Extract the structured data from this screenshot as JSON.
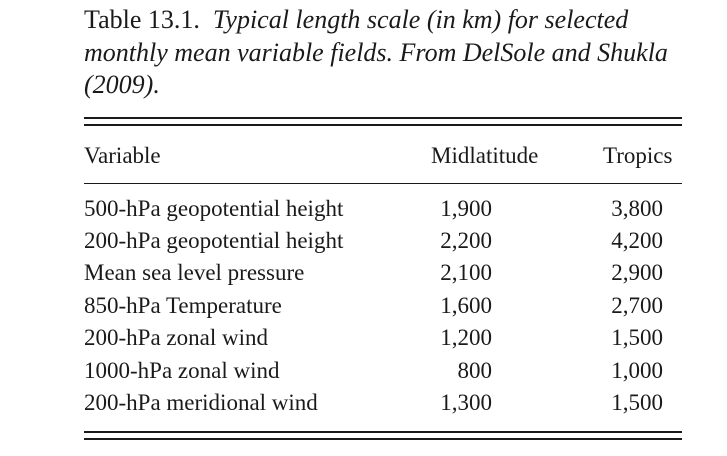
{
  "caption": {
    "label": "Table 13.1.",
    "text": "Typical length scale (in km) for selected monthly mean variable fields. From DelSole and Shukla (2009)."
  },
  "table": {
    "headers": [
      "Variable",
      "Midlatitude",
      "Tropics"
    ],
    "rows": [
      {
        "variable": "500-hPa geopotential height",
        "midlatitude": "1,900",
        "tropics": "3,800"
      },
      {
        "variable": "200-hPa geopotential height",
        "midlatitude": "2,200",
        "tropics": "4,200"
      },
      {
        "variable": "Mean sea level pressure",
        "midlatitude": "2,100",
        "tropics": "2,900"
      },
      {
        "variable": "850-hPa Temperature",
        "midlatitude": "1,600",
        "tropics": "2,700"
      },
      {
        "variable": "200-hPa zonal wind",
        "midlatitude": "1,200",
        "tropics": "1,500"
      },
      {
        "variable": "1000-hPa zonal wind",
        "midlatitude": "800",
        "tropics": "1,000"
      },
      {
        "variable": "200-hPa meridional wind",
        "midlatitude": "1,300",
        "tropics": "1,500"
      }
    ]
  }
}
